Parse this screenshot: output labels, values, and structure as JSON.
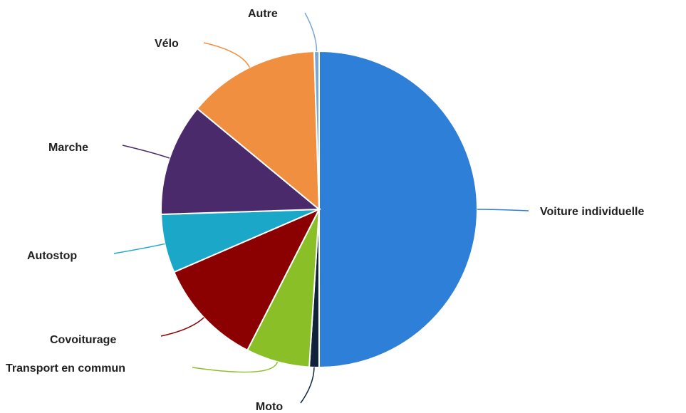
{
  "chart_data": {
    "type": "pie",
    "categories": [
      "Voiture individuelle",
      "Moto",
      "Transport en commun",
      "Covoiturage",
      "Autostop",
      "Marche",
      "Vélo",
      "Autre"
    ],
    "values": [
      50,
      1,
      6.5,
      11,
      6,
      11.5,
      13.5,
      0.5
    ],
    "colors": [
      "#2e7fd8",
      "#10233a",
      "#8bbf27",
      "#8b0000",
      "#1ba8c8",
      "#4b2a6b",
      "#f08f3f",
      "#7aa6d8"
    ]
  }
}
